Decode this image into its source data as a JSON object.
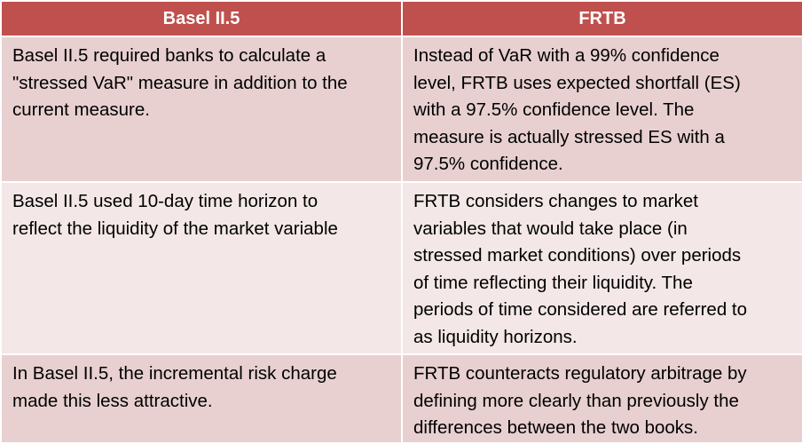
{
  "table": {
    "header": [
      "Basel II.5",
      "FRTB"
    ],
    "rows": [
      [
        [
          "Basel II.5 required banks to calculate a",
          "\"stressed VaR\" measure in addition to the",
          "current measure."
        ],
        [
          "Instead of VaR with a 99% confidence",
          "level, FRTB uses expected shortfall (ES)",
          "with a 97.5% confidence level. The",
          "measure is actually stressed ES with a",
          "97.5% confidence."
        ]
      ],
      [
        [
          "Basel II.5 used 10-day time horizon to",
          "reflect the liquidity of the market variable"
        ],
        [
          "FRTB considers changes to market",
          "variables that would take place (in",
          "stressed market conditions) over periods",
          "of time reflecting their liquidity. The",
          "periods of time considered are referred to",
          "as liquidity horizons."
        ]
      ],
      [
        [
          "In Basel II.5, the incremental risk charge",
          "made this less attractive."
        ],
        [
          "FRTB counteracts regulatory arbitrage by",
          "defining more clearly than previously the",
          "differences between the two books."
        ]
      ]
    ]
  }
}
